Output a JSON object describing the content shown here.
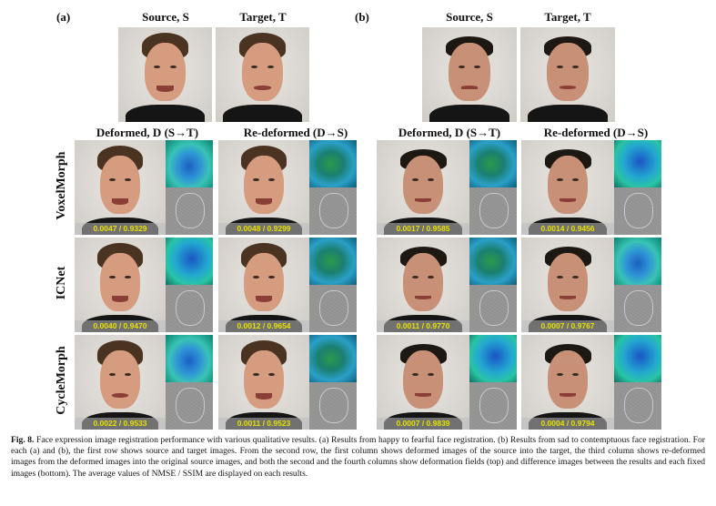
{
  "panels": [
    {
      "label": "(a)",
      "source_header": "Source, S",
      "target_header": "Target, T",
      "deformed_header": "Deformed, D (S→T)",
      "redeformed_header": "Re-deformed (D→S)",
      "metrics": [
        {
          "deformed": "0.0047 / 0.9329",
          "redeformed": "0.0048 / 0.9299"
        },
        {
          "deformed": "0.0040 / 0.9470",
          "redeformed": "0.0012 / 0.9654"
        },
        {
          "deformed": "0.0022 / 0.9533",
          "redeformed": "0.0011 / 0.9523"
        }
      ]
    },
    {
      "label": "(b)",
      "source_header": "Source, S",
      "target_header": "Target, T",
      "deformed_header": "Deformed, D (S→T)",
      "redeformed_header": "Re-deformed (D→S)",
      "metrics": [
        {
          "deformed": "0.0017 / 0.9585",
          "redeformed": "0.0014 / 0.9456"
        },
        {
          "deformed": "0.0011 / 0.9770",
          "redeformed": "0.0007 / 0.9767"
        },
        {
          "deformed": "0.0007 / 0.9839",
          "redeformed": "0.0004 / 0.9794"
        }
      ]
    }
  ],
  "row_labels": [
    "VoxelMorph",
    "ICNet",
    "CycleMorph"
  ],
  "caption": {
    "fig_label": "Fig. 8.",
    "text": " Face expression image registration performance with various qualitative results. (a) Results from happy to fearful face registration. (b) Results from sad to contemptuous face registration. For each (a) and (b), the first row shows source and target images. From the second row, the first column shows deformed images of the source into the target, the third column shows re-deformed images from the deformed images into the original source images, and both the second and the fourth columns show deformation fields (top) and difference images between the results and each fixed images (bottom). The average values of NMSE / SSIM are displayed on each results."
  }
}
